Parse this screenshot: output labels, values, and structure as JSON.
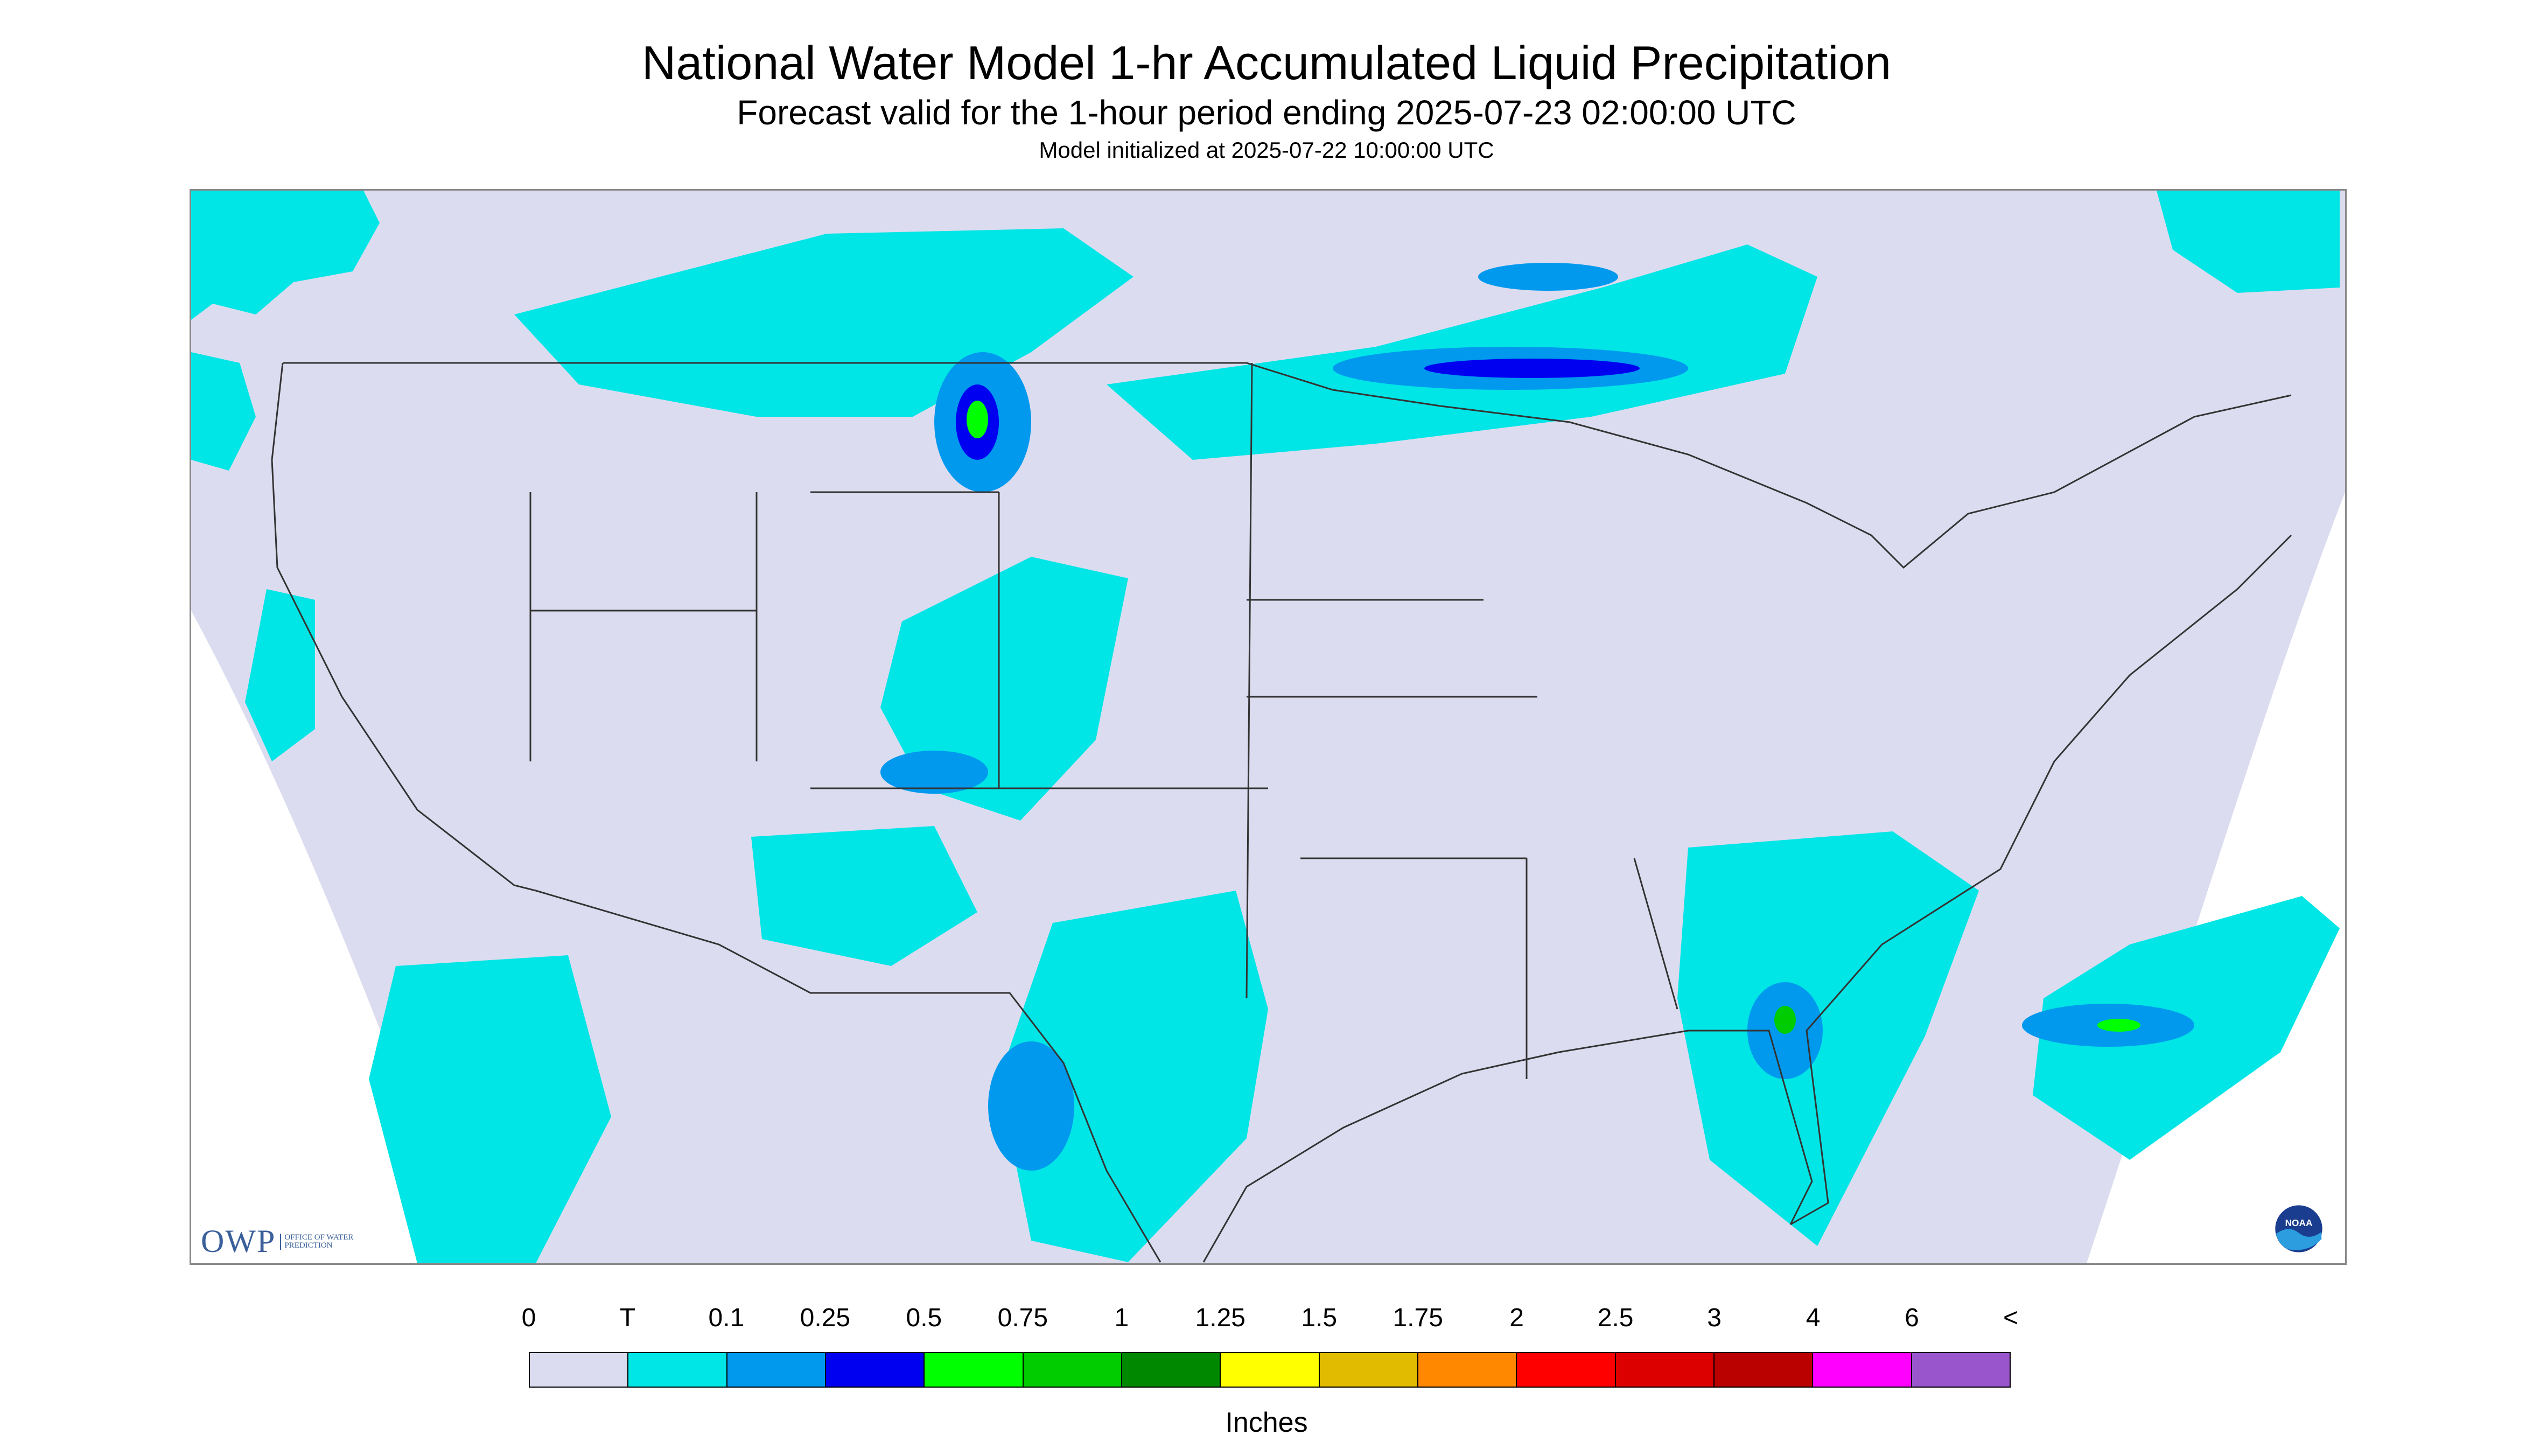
{
  "title": "National Water Model 1-hr Accumulated Liquid Precipitation",
  "subtitle": "Forecast valid for the 1-hour period ending 2025-07-23 02:00:00 UTC",
  "init_line": "Model initialized at 2025-07-22 10:00:00 UTC",
  "colors": {
    "no_data": "#ffffff",
    "background": "#dcdcf0",
    "boundary": "#333333",
    "trace": "#00e5e5",
    "light": "#0099ee",
    "moderate": "#0000f0",
    "heavy": "#00ff00"
  },
  "legend": {
    "unit": "Inches",
    "labels": [
      "0",
      "T",
      "0.1",
      "0.25",
      "0.5",
      "0.75",
      "1",
      "1.25",
      "1.5",
      "1.75",
      "2",
      "2.5",
      "3",
      "4",
      "6",
      "<"
    ],
    "colors": [
      "#dcdcf0",
      "#00e5e5",
      "#0099ee",
      "#0000f0",
      "#00ff00",
      "#00cc00",
      "#008800",
      "#ffff00",
      "#e0bb00",
      "#ff8800",
      "#ff0000",
      "#dd0000",
      "#bb0000",
      "#ff00ff",
      "#9955cc"
    ]
  },
  "logos": {
    "owp": {
      "mark": "OWP",
      "text": "OFFICE OF WATER PREDICTION"
    },
    "noaa": {
      "text": "NOAA"
    }
  }
}
